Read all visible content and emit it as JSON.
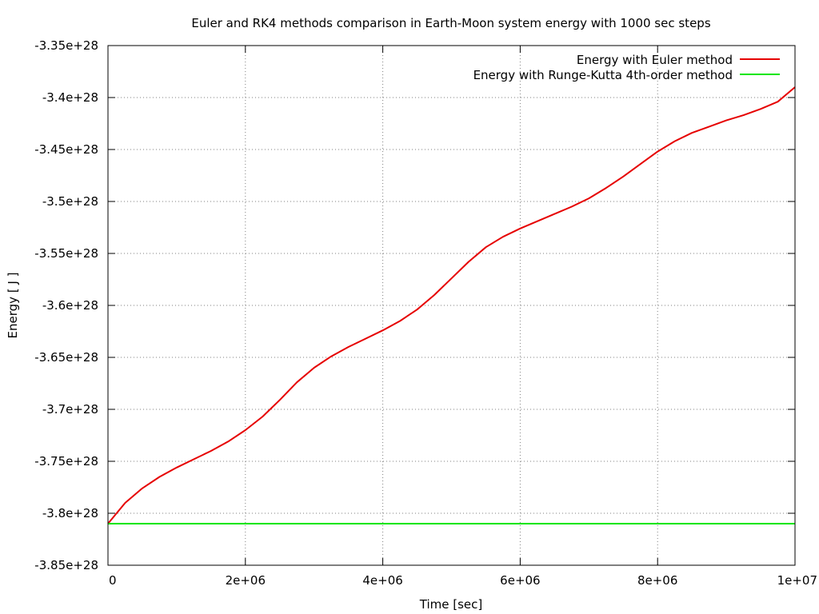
{
  "chart_data": {
    "type": "line",
    "title": "Euler and RK4 methods comparison in Earth-Moon system energy with 1000 sec steps",
    "xlabel": "Time [sec]",
    "ylabel": "Energy [ J ]",
    "xlim": [
      0,
      10000000
    ],
    "ylim": [
      -3.85e+28,
      -3.35e+28
    ],
    "x_ticks": [
      {
        "value": 0,
        "label": "0"
      },
      {
        "value": 2000000,
        "label": "2e+06"
      },
      {
        "value": 4000000,
        "label": "4e+06"
      },
      {
        "value": 6000000,
        "label": "6e+06"
      },
      {
        "value": 8000000,
        "label": "8e+06"
      },
      {
        "value": 10000000,
        "label": "1e+07"
      }
    ],
    "y_ticks": [
      {
        "value": -3.85e+28,
        "label": "-3.85e+28"
      },
      {
        "value": -3.8e+28,
        "label": "-3.8e+28"
      },
      {
        "value": -3.75e+28,
        "label": "-3.75e+28"
      },
      {
        "value": -3.7e+28,
        "label": "-3.7e+28"
      },
      {
        "value": -3.65e+28,
        "label": "-3.65e+28"
      },
      {
        "value": -3.6e+28,
        "label": "-3.6e+28"
      },
      {
        "value": -3.55e+28,
        "label": "-3.55e+28"
      },
      {
        "value": -3.5e+28,
        "label": "-3.5e+28"
      },
      {
        "value": -3.45e+28,
        "label": "-3.45e+28"
      },
      {
        "value": -3.4e+28,
        "label": "-3.4e+28"
      },
      {
        "value": -3.35e+28,
        "label": "-3.35e+28"
      }
    ],
    "grid": true,
    "grid_style": "dotted",
    "legend_position": "top-right",
    "series": [
      {
        "name": "Energy with Euler method",
        "color": "#e60000",
        "x": [
          0,
          250000,
          500000,
          750000,
          1000000,
          1250000,
          1500000,
          1750000,
          2000000,
          2250000,
          2500000,
          2750000,
          3000000,
          3250000,
          3500000,
          3750000,
          4000000,
          4250000,
          4500000,
          4750000,
          5000000,
          5250000,
          5500000,
          5750000,
          6000000,
          6250000,
          6500000,
          6750000,
          7000000,
          7250000,
          7500000,
          7750000,
          8000000,
          8250000,
          8500000,
          8750000,
          9000000,
          9250000,
          9500000,
          9750000,
          10000000
        ],
        "y": [
          -3.81e+28,
          -3.79e+28,
          -3.776e+28,
          -3.765e+28,
          -3.756e+28,
          -3.748e+28,
          -3.74e+28,
          -3.731e+28,
          -3.72e+28,
          -3.707e+28,
          -3.691e+28,
          -3.674e+28,
          -3.66e+28,
          -3.649e+28,
          -3.64e+28,
          -3.632e+28,
          -3.624e+28,
          -3.615e+28,
          -3.604e+28,
          -3.59e+28,
          -3.574e+28,
          -3.558e+28,
          -3.544e+28,
          -3.534e+28,
          -3.526e+28,
          -3.519e+28,
          -3.512e+28,
          -3.505e+28,
          -3.497e+28,
          -3.487e+28,
          -3.476e+28,
          -3.464e+28,
          -3.452e+28,
          -3.442e+28,
          -3.434e+28,
          -3.428e+28,
          -3.422e+28,
          -3.417e+28,
          -3.411e+28,
          -3.404e+28,
          -3.39e+28
        ]
      },
      {
        "name": "Energy with Runge-Kutta 4th-order method",
        "color": "#00e600",
        "x": [
          0,
          10000000
        ],
        "y": [
          -3.81e+28,
          -3.81e+28
        ]
      }
    ]
  }
}
